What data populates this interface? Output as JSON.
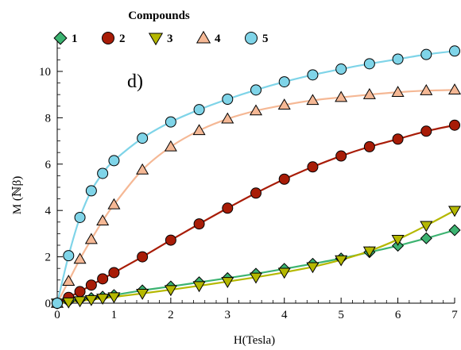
{
  "chart_data": {
    "type": "line",
    "panel_label": "d)",
    "legend_title": "Compounds",
    "legend_placement": "top-left",
    "xlabel": "H(Tesla)",
    "ylabel": "M (ℕβ)",
    "xlim": [
      0,
      7
    ],
    "ylim": [
      0,
      11.3
    ],
    "xticks": [
      0,
      1,
      2,
      3,
      4,
      5,
      6,
      7
    ],
    "yticks": [
      0,
      2,
      4,
      6,
      8,
      10
    ],
    "x": [
      0,
      0.2,
      0.4,
      0.6,
      0.8,
      1.0,
      1.5,
      2.0,
      2.5,
      3.0,
      3.5,
      4.0,
      4.5,
      5.0,
      5.5,
      6.0,
      6.5,
      7.0
    ],
    "series": [
      {
        "name": "1",
        "color": "#3cb371",
        "marker": "diamond",
        "values": [
          0,
          0.08,
          0.15,
          0.22,
          0.28,
          0.35,
          0.55,
          0.72,
          0.9,
          1.08,
          1.27,
          1.48,
          1.7,
          1.93,
          2.2,
          2.48,
          2.8,
          3.15
        ]
      },
      {
        "name": "2",
        "color": "#a81c07",
        "marker": "circle",
        "values": [
          0,
          0.25,
          0.5,
          0.78,
          1.05,
          1.32,
          2.0,
          2.72,
          3.42,
          4.1,
          4.75,
          5.35,
          5.88,
          6.35,
          6.75,
          7.08,
          7.42,
          7.68
        ]
      },
      {
        "name": "3",
        "color": "#b5b800",
        "marker": "triangle-down",
        "values": [
          0,
          0.05,
          0.1,
          0.15,
          0.21,
          0.27,
          0.42,
          0.58,
          0.75,
          0.93,
          1.12,
          1.33,
          1.57,
          1.87,
          2.25,
          2.75,
          3.35,
          4.0
        ]
      },
      {
        "name": "4",
        "color": "#f5b895",
        "marker": "triangle-up",
        "values": [
          0,
          0.95,
          1.9,
          2.75,
          3.55,
          4.25,
          5.75,
          6.75,
          7.45,
          7.95,
          8.3,
          8.55,
          8.75,
          8.88,
          9.0,
          9.1,
          9.17,
          9.2
        ]
      },
      {
        "name": "5",
        "color": "#7fd4e8",
        "marker": "circle",
        "values": [
          0,
          2.05,
          3.7,
          4.85,
          5.6,
          6.15,
          7.12,
          7.82,
          8.35,
          8.8,
          9.2,
          9.55,
          9.85,
          10.1,
          10.33,
          10.53,
          10.73,
          10.88
        ]
      }
    ]
  }
}
